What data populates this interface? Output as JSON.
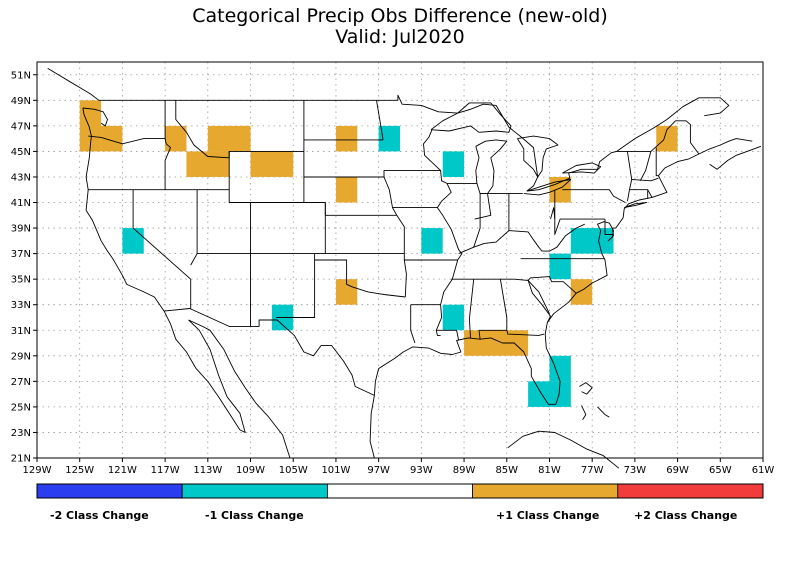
{
  "title": {
    "line1": "Categorical Precip Obs Difference (new-old)",
    "line2": "Valid: Jul2020"
  },
  "map": {
    "lon_range": [
      -129,
      -61
    ],
    "lat_range": [
      21,
      52
    ],
    "lon_ticks": [
      "129W",
      "125W",
      "121W",
      "117W",
      "113W",
      "109W",
      "105W",
      "101W",
      "97W",
      "93W",
      "89W",
      "85W",
      "81W",
      "77W",
      "73W",
      "69W",
      "65W",
      "61W"
    ],
    "lat_ticks": [
      "21N",
      "23N",
      "25N",
      "27N",
      "29N",
      "31N",
      "33N",
      "35N",
      "37N",
      "39N",
      "41N",
      "43N",
      "45N",
      "47N",
      "49N",
      "51N"
    ],
    "gridlines": true
  },
  "colors": {
    "minus2": "#2a3ef0",
    "minus1": "#00c8c8",
    "zero": "#ffffff",
    "plus1": "#e6a82e",
    "plus2": "#f23c3c"
  },
  "legend": {
    "labels": [
      "-2 Class Change",
      "-1 Class Change",
      "+1 Class Change",
      "+2 Class Change"
    ]
  },
  "cells": [
    {
      "lon": [
        -125,
        -123
      ],
      "lat": [
        45,
        49
      ],
      "value": 1
    },
    {
      "lon": [
        -123,
        -121
      ],
      "lat": [
        45,
        47
      ],
      "value": 1
    },
    {
      "lon": [
        -117,
        -115
      ],
      "lat": [
        45,
        47
      ],
      "value": 1
    },
    {
      "lon": [
        -113,
        -109
      ],
      "lat": [
        45,
        47
      ],
      "value": 1
    },
    {
      "lon": [
        -115,
        -111
      ],
      "lat": [
        43,
        45
      ],
      "value": 1
    },
    {
      "lon": [
        -109,
        -105
      ],
      "lat": [
        43,
        45
      ],
      "value": 1
    },
    {
      "lon": [
        -101,
        -99
      ],
      "lat": [
        45,
        47
      ],
      "value": 1
    },
    {
      "lon": [
        -101,
        -99
      ],
      "lat": [
        41,
        43
      ],
      "value": 1
    },
    {
      "lon": [
        -101,
        -99
      ],
      "lat": [
        33,
        35
      ],
      "value": 1
    },
    {
      "lon": [
        -89,
        -83
      ],
      "lat": [
        29,
        31
      ],
      "value": 1
    },
    {
      "lon": [
        -79,
        -77
      ],
      "lat": [
        33,
        35
      ],
      "value": 1
    },
    {
      "lon": [
        -81,
        -79
      ],
      "lat": [
        41,
        43
      ],
      "value": 1
    },
    {
      "lon": [
        -71,
        -69
      ],
      "lat": [
        45,
        47
      ],
      "value": 1
    },
    {
      "lon": [
        -97,
        -95
      ],
      "lat": [
        45,
        47
      ],
      "value": -1
    },
    {
      "lon": [
        -91,
        -89
      ],
      "lat": [
        43,
        45
      ],
      "value": -1
    },
    {
      "lon": [
        -93,
        -91
      ],
      "lat": [
        37,
        39
      ],
      "value": -1
    },
    {
      "lon": [
        -121,
        -119
      ],
      "lat": [
        37,
        39
      ],
      "value": -1
    },
    {
      "lon": [
        -107,
        -105
      ],
      "lat": [
        31,
        33
      ],
      "value": -1
    },
    {
      "lon": [
        -91,
        -89
      ],
      "lat": [
        31,
        33
      ],
      "value": -1
    },
    {
      "lon": [
        -81,
        -79
      ],
      "lat": [
        35,
        37
      ],
      "value": -1
    },
    {
      "lon": [
        -79,
        -75
      ],
      "lat": [
        37,
        39
      ],
      "value": -1
    },
    {
      "lon": [
        -83,
        -79
      ],
      "lat": [
        25,
        27
      ],
      "value": -1
    },
    {
      "lon": [
        -81,
        -79
      ],
      "lat": [
        27,
        29
      ],
      "value": -1
    }
  ]
}
